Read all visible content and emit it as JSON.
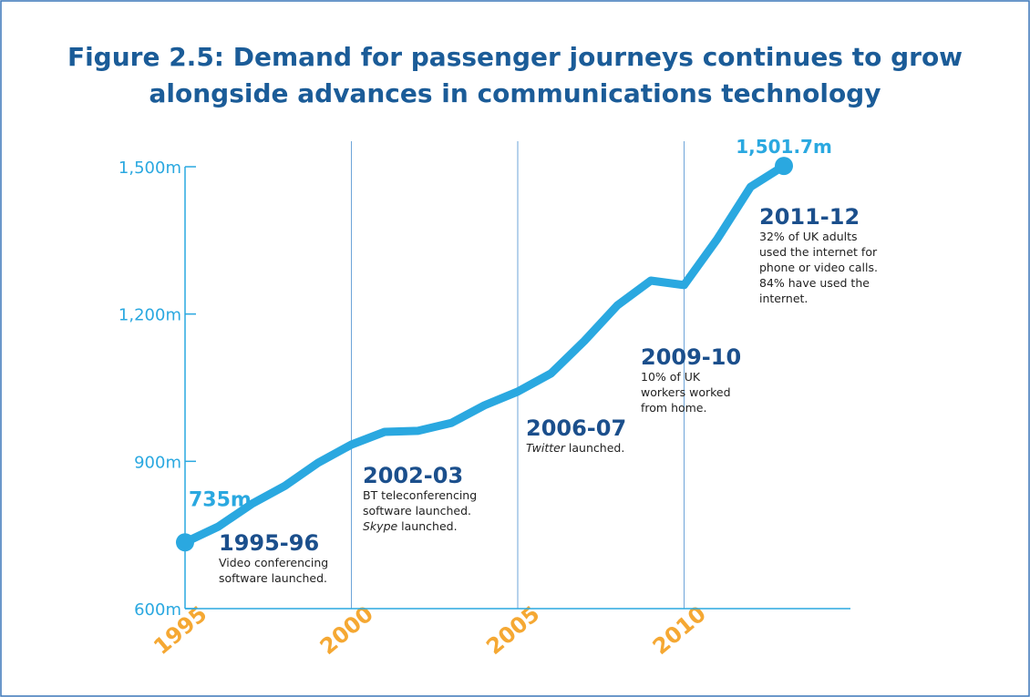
{
  "chart_data": {
    "type": "line",
    "title": [
      "Figure 2.5: Demand for passenger journeys continues to grow",
      "alongside advances in communications technology"
    ],
    "x": [
      1995,
      1996,
      1997,
      1998,
      1999,
      2000,
      2001,
      2002,
      2003,
      2004,
      2005,
      2006,
      2007,
      2008,
      2009,
      2010,
      2011,
      2012,
      2013
    ],
    "series": [
      {
        "color": "#2aa8e0",
        "values": [
          735,
          767,
          813,
          850,
          897,
          934,
          960,
          962,
          978,
          1014,
          1042,
          1079,
          1145,
          1218,
          1268,
          1259,
          1353,
          1459,
          1501.7
        ],
        "value_labels": [
          "735m",
          null,
          null,
          null,
          null,
          null,
          null,
          null,
          null,
          null,
          null,
          null,
          null,
          null,
          null,
          null,
          null,
          null,
          "1,501.7m"
        ]
      }
    ],
    "xlim": [
      1995,
      2015
    ],
    "xticks": [
      1995,
      2000,
      2005,
      2010
    ],
    "ylim": [
      600,
      1500
    ],
    "yticks": [
      {
        "value": 600,
        "label": "600m"
      },
      {
        "value": 900,
        "label": "900m"
      },
      {
        "value": 1200,
        "label": "1,200m"
      },
      {
        "value": 1500,
        "label": "1,500m"
      }
    ],
    "grid": true,
    "annotations": [
      {
        "title": "1995-96",
        "lines": [
          [
            "Video conferencing"
          ],
          [
            "software launched."
          ]
        ]
      },
      {
        "title": "2002-03",
        "lines": [
          [
            "BT teleconferencing"
          ],
          [
            "software launched."
          ],
          [
            {
              "text": "Skype",
              "italic": true
            },
            " launched."
          ]
        ]
      },
      {
        "title": "2006-07",
        "lines": [
          [
            {
              "text": "Twitter",
              "italic": true
            },
            " launched."
          ]
        ]
      },
      {
        "title": "2009-10",
        "lines": [
          [
            "10% of UK"
          ],
          [
            "workers worked"
          ],
          [
            "from home."
          ]
        ]
      },
      {
        "title": "2011-12",
        "lines": [
          [
            "32% of UK adults"
          ],
          [
            "used the internet for"
          ],
          [
            "phone or video calls."
          ],
          [
            "84% have used the"
          ],
          [
            "internet."
          ]
        ]
      }
    ]
  }
}
